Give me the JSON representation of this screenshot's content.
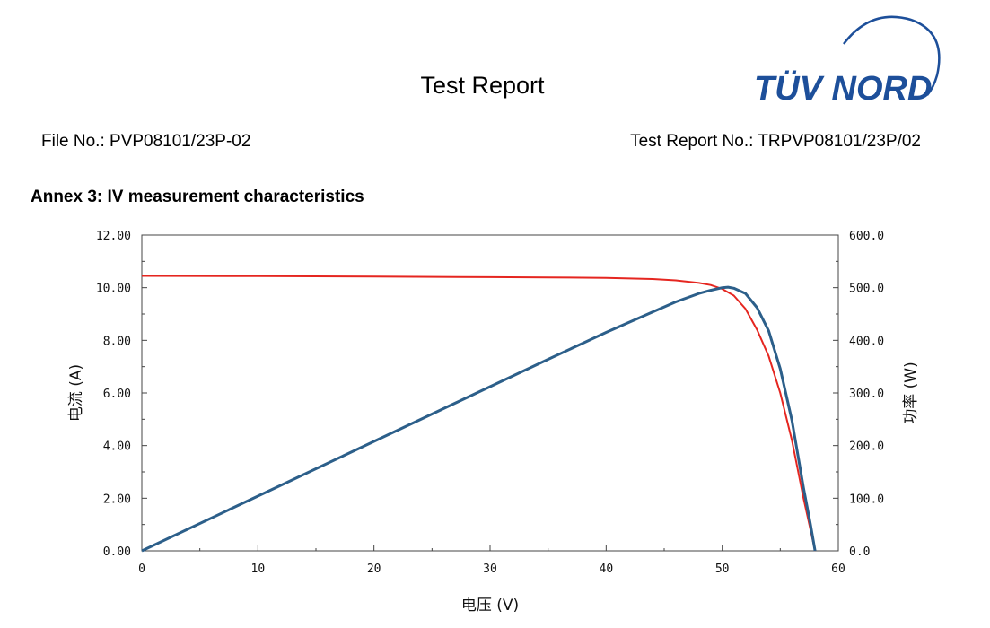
{
  "header": {
    "title": "Test Report",
    "file_no": "File No.: PVP08101/23P-02",
    "report_no": "Test Report No.: TRPVP08101/23P/02",
    "logo_text": "TÜV NORD"
  },
  "section": {
    "title": "Annex 3: IV measurement characteristics"
  },
  "colors": {
    "iv_curve": "#e52620",
    "pv_curve": "#2c5f8a",
    "logo": "#1d4f9a"
  },
  "chart_data": {
    "type": "line",
    "xlabel": "电压 (V)",
    "ylabel": "电流 (A)",
    "y2label": "功率 (W)",
    "xlim": [
      0,
      60
    ],
    "ylim": [
      0,
      12
    ],
    "y2lim": [
      0,
      600
    ],
    "x_ticks": [
      "0",
      "10",
      "20",
      "30",
      "40",
      "50",
      "60"
    ],
    "y_ticks": [
      "0.00",
      "2.00",
      "4.00",
      "6.00",
      "8.00",
      "10.00",
      "12.00"
    ],
    "y2_ticks": [
      "0.0",
      "100.0",
      "200.0",
      "300.0",
      "400.0",
      "500.0",
      "600.0"
    ],
    "grid": false,
    "series": [
      {
        "axis": "left",
        "color": "#e52620",
        "x": [
          0,
          10,
          20,
          30,
          35,
          40,
          44,
          46,
          48,
          49,
          50,
          51,
          52,
          53,
          54,
          55,
          56,
          57,
          57.6,
          58
        ],
        "y": [
          10.45,
          10.44,
          10.42,
          10.4,
          10.39,
          10.37,
          10.33,
          10.28,
          10.18,
          10.1,
          9.95,
          9.7,
          9.2,
          8.4,
          7.4,
          6.0,
          4.2,
          2.0,
          0.8,
          0
        ]
      },
      {
        "axis": "right",
        "color": "#2c5f8a",
        "x": [
          0,
          10,
          20,
          30,
          35,
          40,
          44,
          46,
          48,
          49,
          50,
          50.5,
          51,
          52,
          53,
          54,
          55,
          56,
          57,
          57.6,
          58
        ],
        "y": [
          0,
          104,
          208,
          312,
          364,
          415,
          454,
          473,
          489,
          495,
          500,
          501,
          499,
          489,
          462,
          418,
          346,
          248,
          120,
          50,
          0
        ]
      }
    ]
  }
}
